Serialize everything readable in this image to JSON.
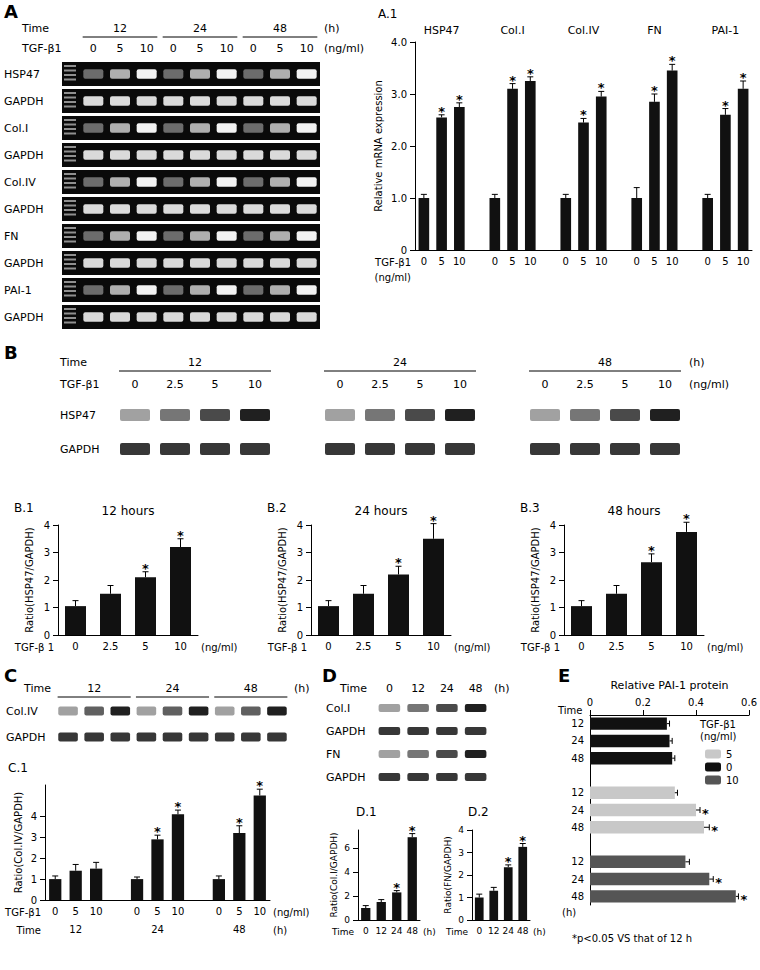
{
  "blots": [
    {
      "panel": "A",
      "time_label": "Time",
      "times": [
        "12",
        "24",
        "48"
      ],
      "time_unit": "(h)",
      "dose_label": "TGF-β1",
      "doses": [
        "0",
        "5",
        "10",
        "0",
        "5",
        "10",
        "0",
        "5",
        "10"
      ],
      "dose_unit": "(ng/ml)",
      "rows": [
        "HSP47",
        "GAPDH",
        "Col.I",
        "GAPDH",
        "Col.IV",
        "GAPDH",
        "FN",
        "GAPDH",
        "PAI-1",
        "GAPDH"
      ]
    },
    {
      "panel": "B",
      "time_label": "Time",
      "times": [
        "12",
        "24",
        "48"
      ],
      "time_unit": "(h)",
      "dose_label": "TGF-β1",
      "doses": [
        "0",
        "2.5",
        "5",
        "10",
        "0",
        "2.5",
        "5",
        "10",
        "0",
        "2.5",
        "5",
        "10"
      ],
      "dose_unit": "(ng/ml)",
      "rows": [
        "HSP47",
        "GAPDH"
      ]
    },
    {
      "panel": "C",
      "time_label": "Time",
      "times": [
        "12",
        "24",
        "48"
      ],
      "time_unit": "(h)",
      "rows": [
        "Col.IV",
        "GAPDH"
      ]
    },
    {
      "panel": "D",
      "time_label": "Time",
      "times": [
        "0",
        "12",
        "24",
        "48"
      ],
      "time_unit": "(h)",
      "rows": [
        "Col.I",
        "GAPDH",
        "FN",
        "GAPDH"
      ]
    }
  ],
  "chart_data": [
    {
      "panel": "A.1",
      "type": "bar",
      "categories": [
        "0",
        "5",
        "10",
        null,
        "0",
        "5",
        "10",
        null,
        "0",
        "5",
        "10",
        null,
        "0",
        "5",
        "10",
        null,
        "0",
        "5",
        "10"
      ],
      "groups": [
        "HSP47",
        "Col.I",
        "Col.IV",
        "FN",
        "PAI-1"
      ],
      "values": [
        1.0,
        2.55,
        2.75,
        null,
        1.0,
        3.1,
        3.25,
        null,
        1.0,
        2.45,
        2.95,
        null,
        1.0,
        2.85,
        3.45,
        null,
        1.0,
        2.6,
        3.1
      ],
      "errors": [
        0.07,
        0.05,
        0.08,
        null,
        0.07,
        0.1,
        0.08,
        null,
        0.07,
        0.08,
        0.1,
        null,
        0.2,
        0.15,
        0.12,
        null,
        0.07,
        0.12,
        0.15
      ],
      "significance": [
        null,
        "*",
        "*",
        null,
        null,
        "*",
        "*",
        null,
        null,
        "*",
        "*",
        null,
        null,
        "*",
        "*",
        null,
        null,
        "*",
        "*"
      ],
      "color": "#111111",
      "ylim": [
        0,
        4
      ],
      "yticks": [
        0,
        {
          "value": 1,
          "label": "1.0"
        },
        {
          "value": 2,
          "label": "2.0"
        },
        {
          "value": 3,
          "label": "3.0"
        },
        {
          "value": 4,
          "label": "4.0"
        }
      ],
      "ylabel": "Relative mRNA expression",
      "xlabel": "TGF-β1",
      "xlabel_unit": "(ng/ml)",
      "grid": false
    },
    {
      "panel": "B.1",
      "type": "bar",
      "title": "12 hours",
      "categories": [
        "0",
        "2.5",
        "5",
        "10"
      ],
      "values": [
        1.05,
        1.5,
        2.1,
        3.2
      ],
      "errors": [
        0.2,
        0.3,
        0.2,
        0.3
      ],
      "significance": [
        null,
        null,
        "*",
        "*"
      ],
      "color": "#111111",
      "ylim": [
        0,
        4
      ],
      "yticks": [
        0,
        1,
        2,
        3,
        4
      ],
      "ylabel": "Ratio(HSP47/GAPDH)",
      "xlabel": "TGF-β 1",
      "xlabel_unit": "(ng/ml)",
      "grid": false
    },
    {
      "panel": "B.2",
      "type": "bar",
      "title": "24 hours",
      "categories": [
        "0",
        "2.5",
        "5",
        "10"
      ],
      "values": [
        1.05,
        1.5,
        2.2,
        3.5
      ],
      "errors": [
        0.2,
        0.3,
        0.3,
        0.55
      ],
      "significance": [
        null,
        null,
        "*",
        "*"
      ],
      "color": "#111111",
      "ylim": [
        0,
        4
      ],
      "yticks": [
        0,
        1,
        2,
        3,
        4
      ],
      "ylabel": "Ratio(HSP47/GAPDH)",
      "xlabel": "TGF-β 1",
      "xlabel_unit": "(ng/ml)",
      "grid": false
    },
    {
      "panel": "B.3",
      "type": "bar",
      "title": "48 hours",
      "categories": [
        "0",
        "2.5",
        "5",
        "10"
      ],
      "values": [
        1.05,
        1.5,
        2.65,
        3.75
      ],
      "errors": [
        0.2,
        0.3,
        0.3,
        0.35
      ],
      "significance": [
        null,
        null,
        "*",
        "*"
      ],
      "color": "#111111",
      "ylim": [
        0,
        4
      ],
      "yticks": [
        0,
        1,
        2,
        3,
        4
      ],
      "ylabel": "Ratio(HSP47/GAPDH)",
      "xlabel": "TGF-β 1",
      "xlabel_unit": "(ng/ml)",
      "grid": false
    },
    {
      "panel": "C.1",
      "type": "bar",
      "categories": [
        "0",
        "5",
        "10",
        null,
        "0",
        "5",
        "10",
        null,
        "0",
        "5",
        "10"
      ],
      "groups": [
        "12",
        "24",
        "48"
      ],
      "group_label": "Time",
      "group_unit": "(h)",
      "values": [
        1.0,
        1.4,
        1.5,
        null,
        1.0,
        2.9,
        4.1,
        null,
        1.0,
        3.2,
        5.0
      ],
      "errors": [
        0.15,
        0.3,
        0.3,
        null,
        0.1,
        0.2,
        0.2,
        null,
        0.15,
        0.35,
        0.3
      ],
      "significance": [
        null,
        null,
        null,
        null,
        null,
        "*",
        "*",
        null,
        null,
        "*",
        "*"
      ],
      "color": "#111111",
      "ylim": [
        0,
        5.5
      ],
      "yticks": [
        0,
        1,
        2,
        3,
        4
      ],
      "ylabel": "Ratio(Col.IV/GAPDH)",
      "xlabel": "TGF-β1",
      "xlabel_unit": "(ng/ml)",
      "grid": false
    },
    {
      "panel": "D.1",
      "type": "bar",
      "categories": [
        "0",
        "12",
        "24",
        "48"
      ],
      "values": [
        1.0,
        1.5,
        2.3,
        6.9
      ],
      "errors": [
        0.2,
        0.2,
        0.15,
        0.3
      ],
      "significance": [
        null,
        null,
        "*",
        "*"
      ],
      "color": "#111111",
      "ylim": [
        0,
        7.5
      ],
      "yticks": [
        0,
        2,
        4,
        6
      ],
      "ylabel": "Ratio(Col.I/GAPDH)",
      "xlabel": "Time",
      "xlabel_unit": "(h)",
      "grid": false
    },
    {
      "panel": "D.2",
      "type": "bar",
      "categories": [
        "0",
        "12",
        "24",
        "48"
      ],
      "values": [
        1.0,
        1.3,
        2.35,
        3.25
      ],
      "errors": [
        0.15,
        0.15,
        0.1,
        0.15
      ],
      "significance": [
        null,
        null,
        "*",
        "*"
      ],
      "color": "#111111",
      "ylim": [
        0,
        4
      ],
      "yticks": [
        0,
        1,
        2,
        3,
        4
      ],
      "ylabel": "Ratio(FN/GAPDH)",
      "xlabel": "Time",
      "xlabel_unit": "(h)",
      "grid": false
    },
    {
      "panel": "E",
      "type": "bar",
      "orientation": "horizontal",
      "xlabel": "Relative PAI-1 protein",
      "categories": [
        "12",
        "24",
        "48",
        null,
        "12",
        "24",
        "48",
        null,
        "12",
        "24",
        "48"
      ],
      "series": [
        {
          "name": "5",
          "color": "#c8c8c8",
          "values": [
            null,
            null,
            null,
            null,
            0.32,
            0.4,
            0.43,
            null,
            null,
            null,
            null
          ],
          "errors": [
            null,
            null,
            null,
            null,
            0.01,
            0.015,
            0.02,
            null,
            null,
            null,
            null
          ],
          "significance": [
            null,
            null,
            null,
            null,
            null,
            "*",
            "*",
            null,
            null,
            null,
            null
          ]
        },
        {
          "name": "0",
          "color": "#111111",
          "values": [
            0.29,
            0.3,
            0.31,
            null,
            null,
            null,
            null,
            null,
            null,
            null,
            null
          ],
          "errors": [
            0.01,
            0.01,
            0.01,
            null,
            null,
            null,
            null,
            null,
            null,
            null,
            null
          ],
          "significance": [
            null,
            null,
            null,
            null,
            null,
            null,
            null,
            null,
            null,
            null,
            null
          ]
        },
        {
          "name": "10",
          "color": "#555555",
          "values": [
            null,
            null,
            null,
            null,
            null,
            null,
            null,
            null,
            0.36,
            0.45,
            0.55
          ],
          "errors": [
            null,
            null,
            null,
            null,
            null,
            null,
            null,
            null,
            0.015,
            0.015,
            0.01
          ],
          "significance": [
            null,
            null,
            null,
            null,
            null,
            null,
            null,
            null,
            null,
            "*",
            "*"
          ]
        }
      ],
      "xlim": [
        0,
        0.6
      ],
      "xticks": [
        0,
        0.2,
        0.4,
        0.6
      ],
      "ylabel": "Time",
      "ylabel_unit": "(h)",
      "legend": "upper right",
      "legend_title": "TGF-β1",
      "legend_title_unit": "(ng/ml)",
      "footnote": "*p<0.05 VS that of 12 h",
      "grid": false
    }
  ]
}
